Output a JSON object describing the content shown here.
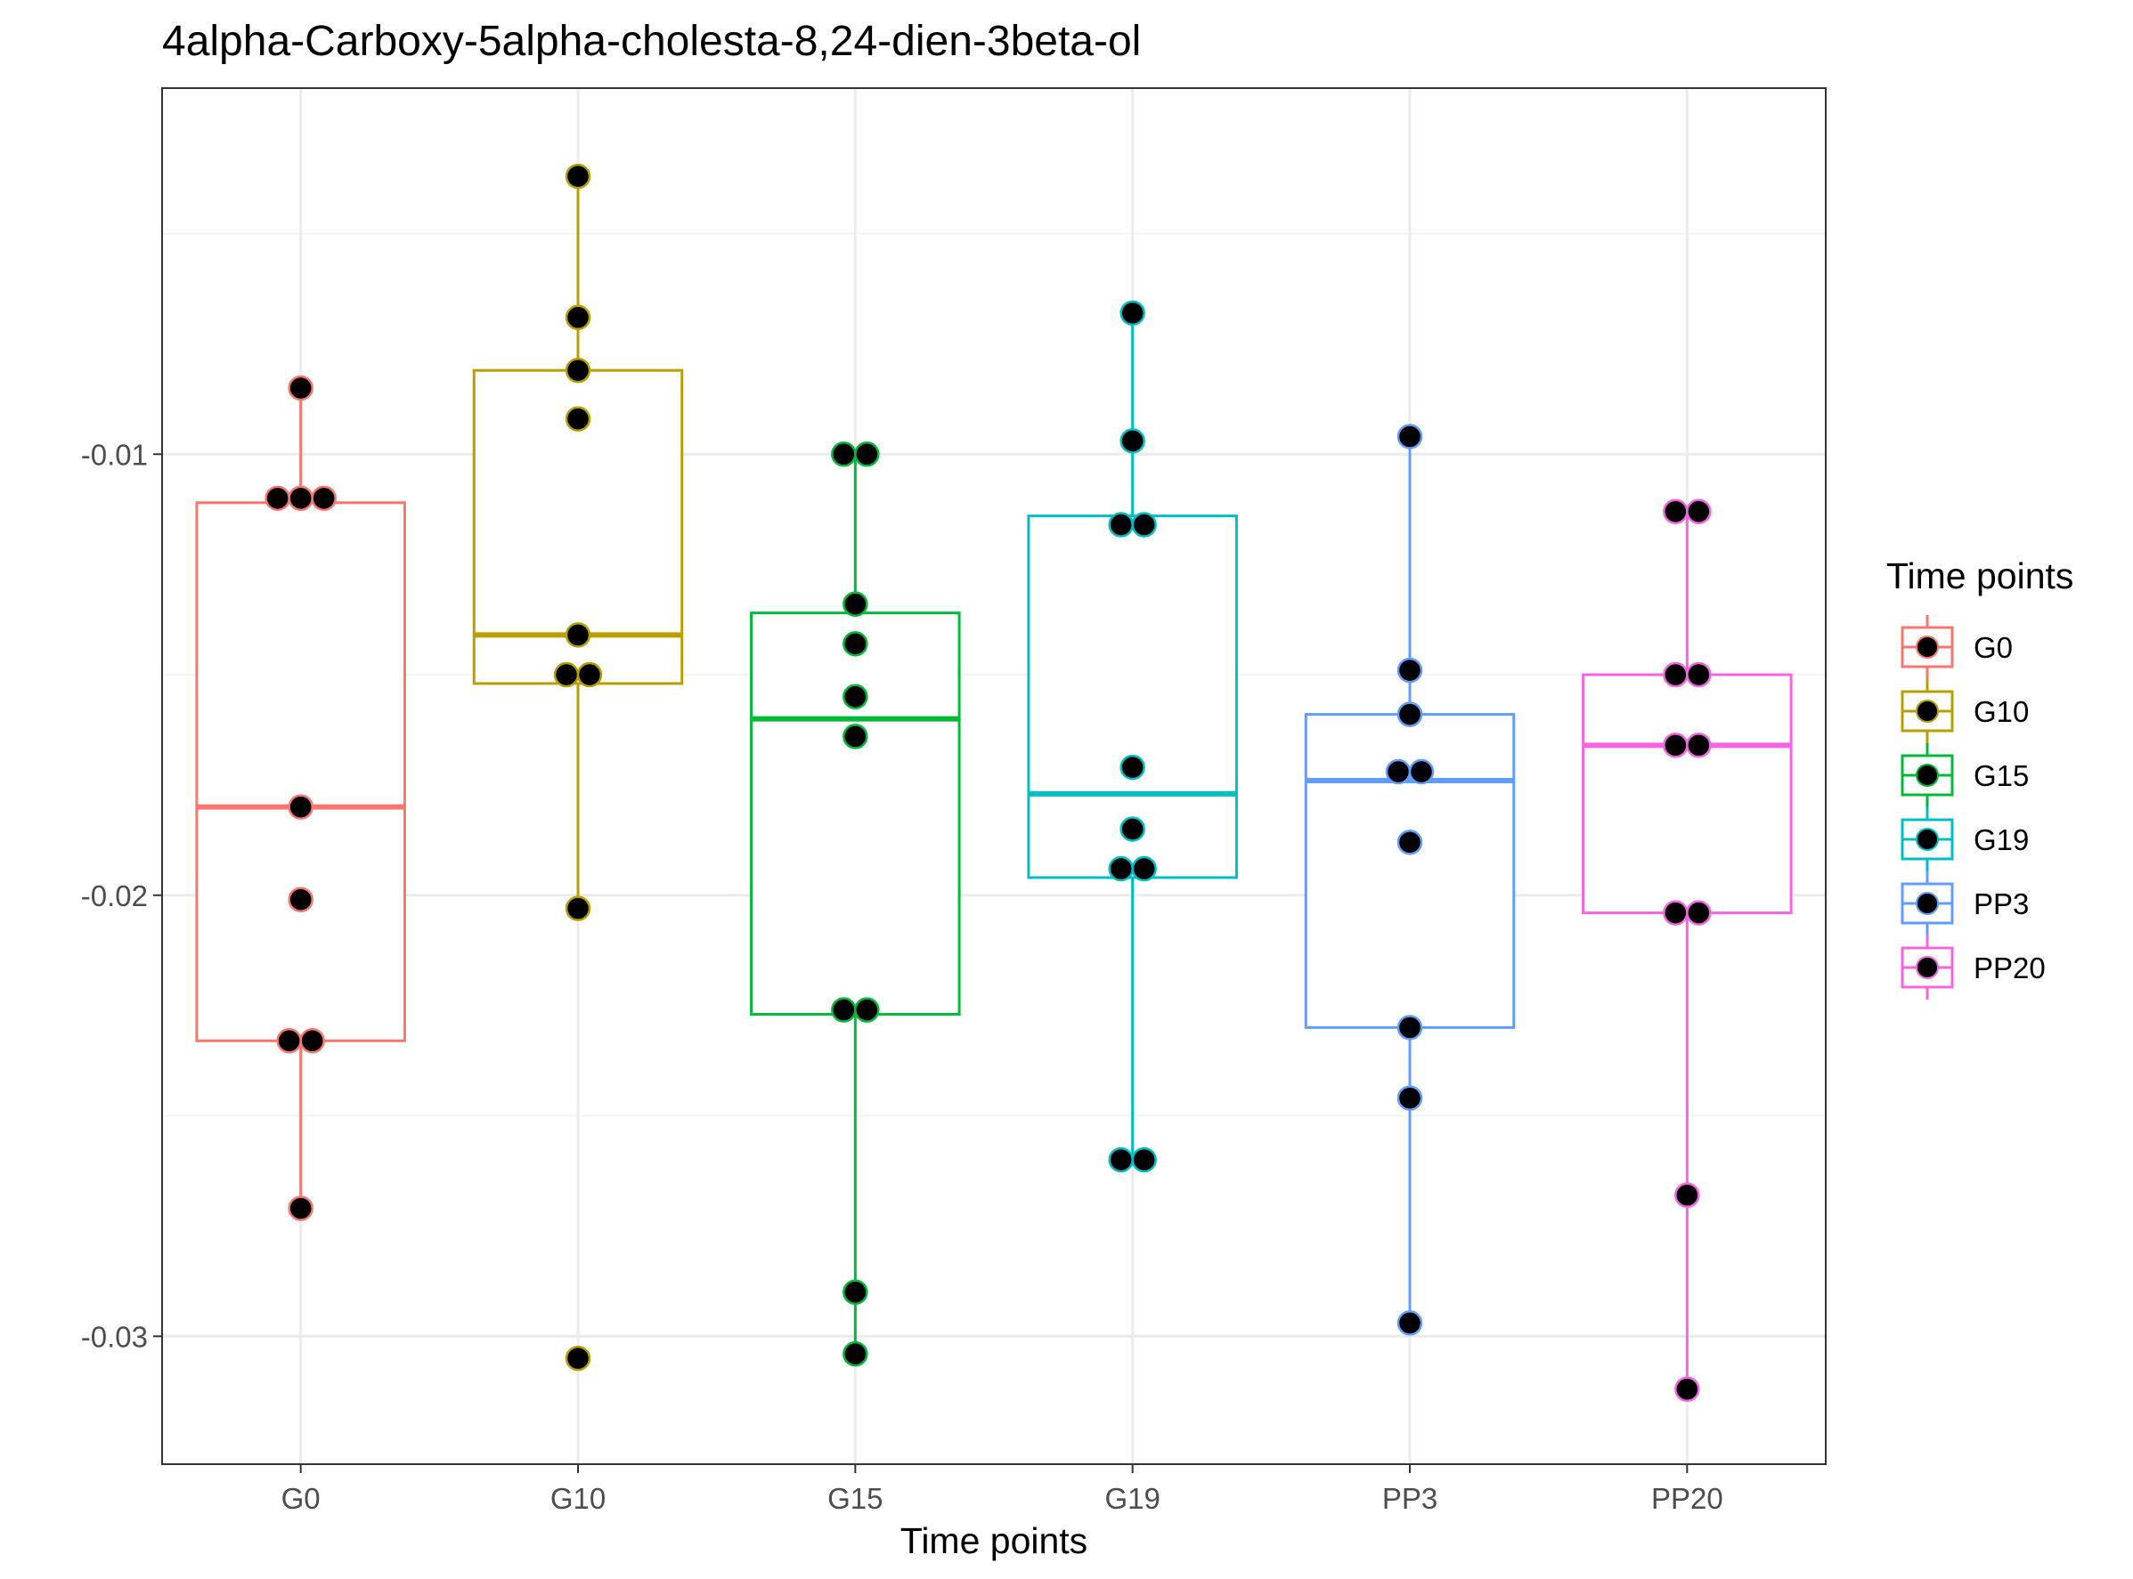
{
  "chart_data": {
    "type": "box",
    "title": "4alpha-Carboxy-5alpha-cholesta-8,24-dien-3beta-ol",
    "xlabel": "Time points",
    "ylabel": "",
    "ylim": [
      -0.0329,
      -0.0017
    ],
    "yticks": [
      -0.01,
      -0.02,
      -0.03
    ],
    "ytick_labels": [
      "-0.01",
      "-0.02",
      "-0.03"
    ],
    "grid": true,
    "legend": {
      "title": "Time points",
      "position": "right"
    },
    "categories": [
      "G0",
      "G10",
      "G15",
      "G19",
      "PP3",
      "PP20"
    ],
    "series": [
      {
        "name": "G0",
        "color": "#F8766D",
        "box": {
          "whisker_low": -0.0271,
          "q1": -0.0233,
          "median": -0.018,
          "q3": -0.0111,
          "whisker_high": -0.0085
        },
        "points": [
          -0.0085,
          -0.011,
          -0.011,
          -0.011,
          -0.018,
          -0.0201,
          -0.0233,
          -0.0233,
          -0.0271
        ]
      },
      {
        "name": "G10",
        "color": "#B79F00",
        "box": {
          "whisker_low": -0.0203,
          "q1": -0.0152,
          "median": -0.0141,
          "q3": -0.0081,
          "whisker_high": -0.0037
        },
        "points": [
          -0.0037,
          -0.0069,
          -0.0081,
          -0.0092,
          -0.0141,
          -0.015,
          -0.015,
          -0.0203,
          -0.0305
        ]
      },
      {
        "name": "G15",
        "color": "#00BA38",
        "box": {
          "whisker_low": -0.0304,
          "q1": -0.0227,
          "median": -0.016,
          "q3": -0.0136,
          "whisker_high": -0.01
        },
        "points": [
          -0.01,
          -0.01,
          -0.0134,
          -0.0143,
          -0.0155,
          -0.0164,
          -0.0226,
          -0.0226,
          -0.029,
          -0.0304
        ]
      },
      {
        "name": "G19",
        "color": "#00BFC4",
        "box": {
          "whisker_low": -0.026,
          "q1": -0.0196,
          "median": -0.0177,
          "q3": -0.0114,
          "whisker_high": -0.0068
        },
        "points": [
          -0.0068,
          -0.0097,
          -0.0116,
          -0.0116,
          -0.0171,
          -0.0185,
          -0.0194,
          -0.0194,
          -0.026,
          -0.026
        ]
      },
      {
        "name": "PP3",
        "color": "#619CFF",
        "box": {
          "whisker_low": -0.0297,
          "q1": -0.023,
          "median": -0.0174,
          "q3": -0.0159,
          "whisker_high": -0.0096
        },
        "points": [
          -0.0096,
          -0.0149,
          -0.0159,
          -0.0172,
          -0.0172,
          -0.0188,
          -0.023,
          -0.0246,
          -0.0297
        ]
      },
      {
        "name": "PP20",
        "color": "#F564E3",
        "box": {
          "whisker_low": -0.0312,
          "q1": -0.0204,
          "median": -0.0166,
          "q3": -0.015,
          "whisker_high": -0.0113
        },
        "points": [
          -0.0113,
          -0.0113,
          -0.015,
          -0.015,
          -0.0166,
          -0.0166,
          -0.0204,
          -0.0204,
          -0.0268,
          -0.0312
        ]
      }
    ]
  }
}
